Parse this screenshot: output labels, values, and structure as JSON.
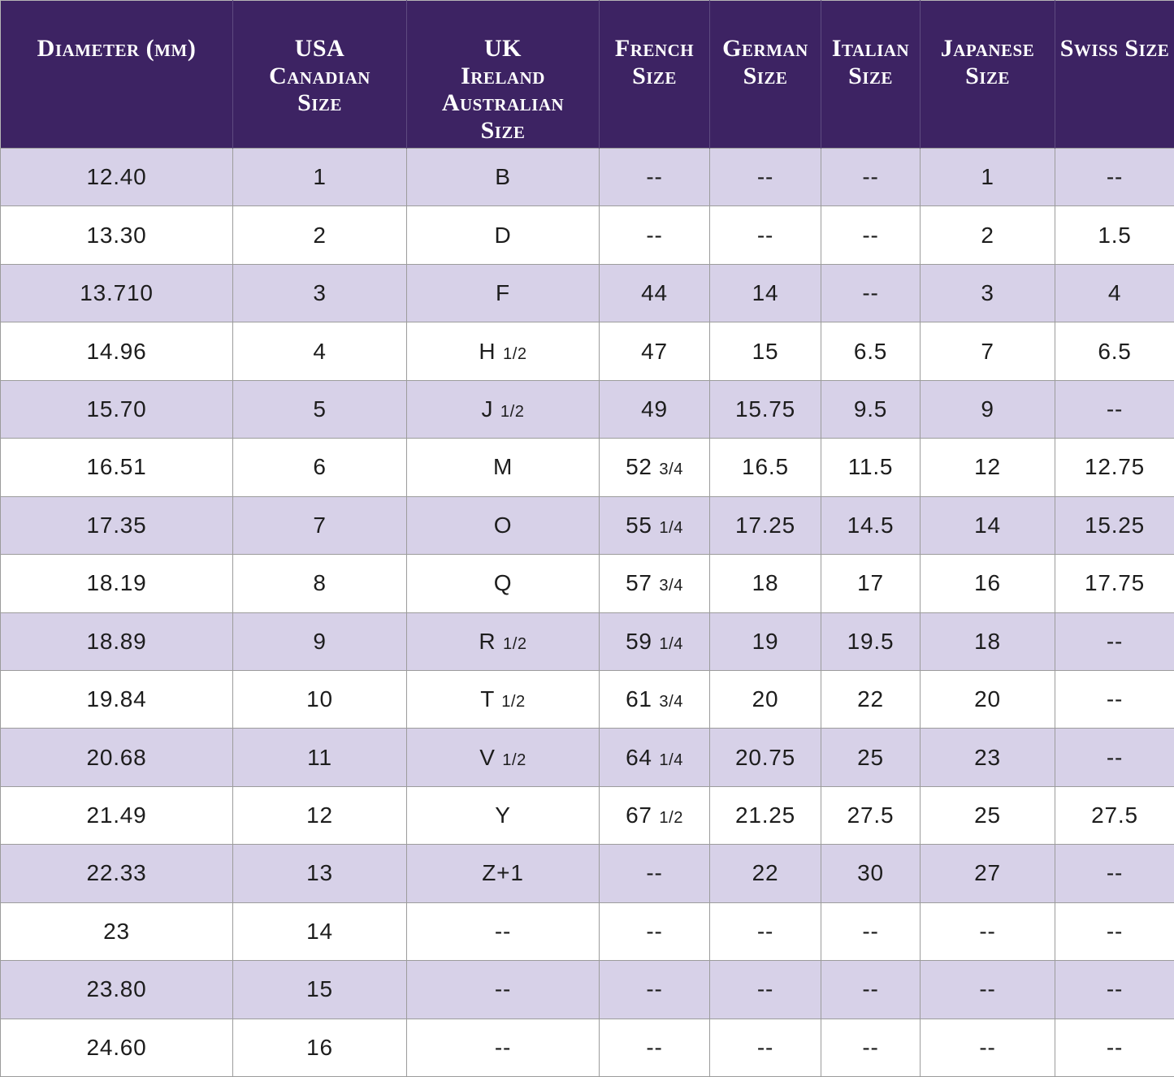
{
  "chart_data": {
    "type": "table",
    "columns": [
      "Diameter (mm)",
      "USA\nCanadian\nSize",
      "UK\nIreland\nAustralian\nSize",
      "French\nSize",
      "German\nSize",
      "Italian\nSize",
      "Japanese Size",
      "Swiss Size"
    ],
    "rows": [
      [
        "12.40",
        "1",
        "B",
        "--",
        "--",
        "--",
        "1",
        "--"
      ],
      [
        "13.30",
        "2",
        "D",
        "--",
        "--",
        "--",
        "2",
        "1.5"
      ],
      [
        "13.710",
        "3",
        "F",
        "44",
        "14",
        "--",
        "3",
        "4"
      ],
      [
        "14.96",
        "4",
        "H 1/2",
        "47",
        "15",
        "6.5",
        "7",
        "6.5"
      ],
      [
        "15.70",
        "5",
        "J 1/2",
        "49",
        "15.75",
        "9.5",
        "9",
        "--"
      ],
      [
        "16.51",
        "6",
        "M",
        "52 3/4",
        "16.5",
        "11.5",
        "12",
        "12.75"
      ],
      [
        "17.35",
        "7",
        "O",
        "55 1/4",
        "17.25",
        "14.5",
        "14",
        "15.25"
      ],
      [
        "18.19",
        "8",
        "Q",
        "57 3/4",
        "18",
        "17",
        "16",
        "17.75"
      ],
      [
        "18.89",
        "9",
        "R 1/2",
        "59 1/4",
        "19",
        "19.5",
        "18",
        "--"
      ],
      [
        "19.84",
        "10",
        "T 1/2",
        "61 3/4",
        "20",
        "22",
        "20",
        "--"
      ],
      [
        "20.68",
        "11",
        "V 1/2",
        "64 1/4",
        "20.75",
        "25",
        "23",
        "--"
      ],
      [
        "21.49",
        "12",
        "Y",
        "67 1/2",
        "21.25",
        "27.5",
        "25",
        "27.5"
      ],
      [
        "22.33",
        "13",
        "Z+1",
        "--",
        "22",
        "30",
        "27",
        "--"
      ],
      [
        "23",
        "14",
        "--",
        "--",
        "--",
        "--",
        "--",
        "--"
      ],
      [
        "23.80",
        "15",
        "--",
        "--",
        "--",
        "--",
        "--",
        "--"
      ],
      [
        "24.60",
        "16",
        "--",
        "--",
        "--",
        "--",
        "--",
        "--"
      ]
    ]
  },
  "colors": {
    "header_bg": "#3d2363",
    "header_divider": "#5e4b80",
    "header_text": "#ffffff",
    "row_alt": "#d7d1e8",
    "row_bg": "#ffffff",
    "border": "#9c9c9c",
    "text": "#1d1d1d"
  }
}
